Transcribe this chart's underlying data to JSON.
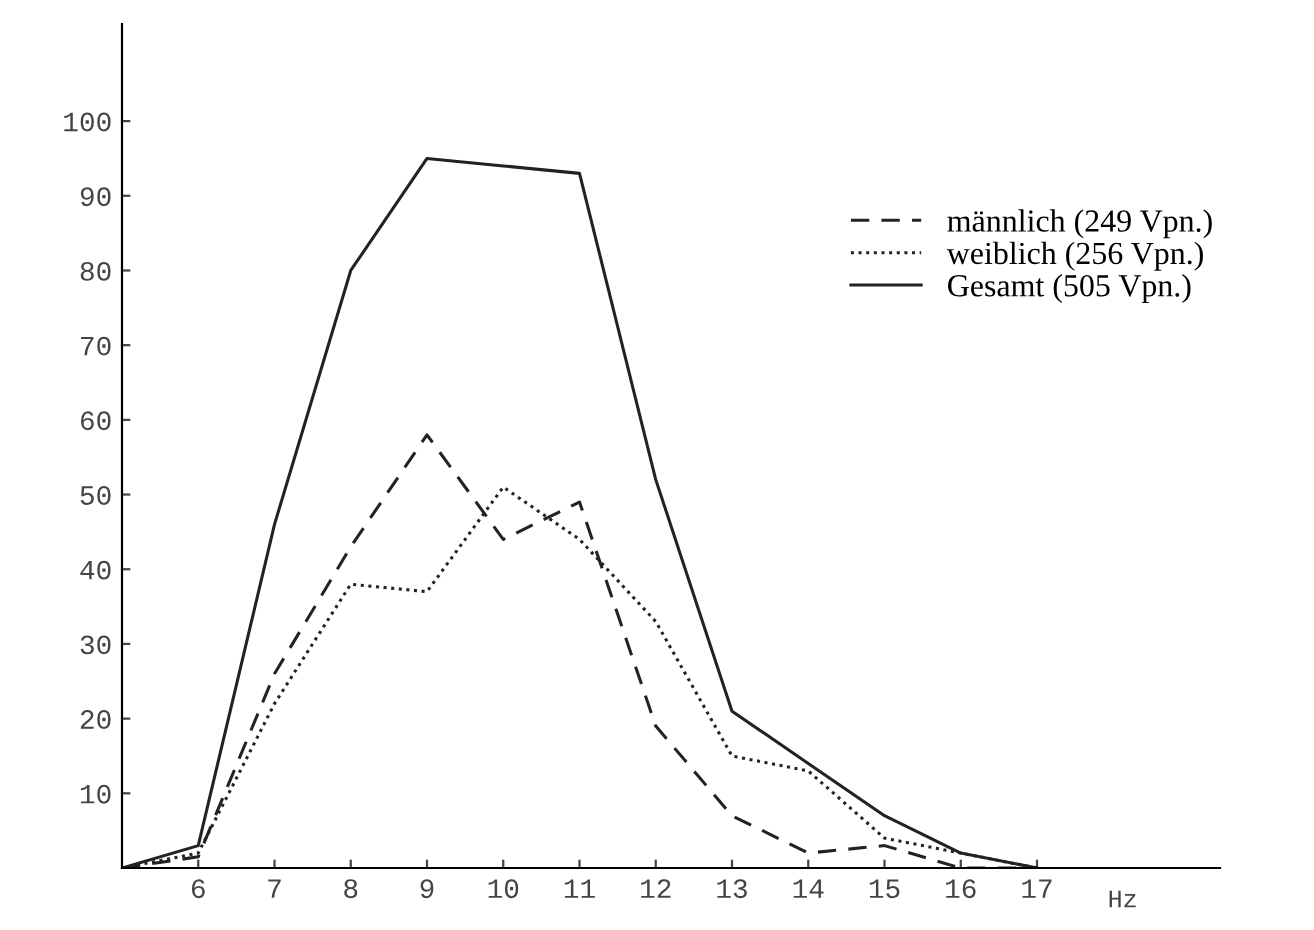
{
  "chart_data": {
    "type": "line",
    "xlabel": "Hz",
    "x": [
      5,
      6,
      7,
      8,
      9,
      10,
      11,
      12,
      13,
      14,
      15,
      16,
      17
    ],
    "series": [
      {
        "name": "männlich (249 Vpn.)",
        "color": "#222222",
        "line_style": "dashed",
        "values": [
          0,
          1.5,
          26,
          43,
          58,
          44,
          49,
          19,
          7,
          2,
          3,
          0,
          0
        ]
      },
      {
        "name": "weiblich (256 Vpn.)",
        "color": "#222222",
        "line_style": "dotted",
        "values": [
          0,
          2,
          22,
          38,
          37,
          51,
          44,
          33,
          15,
          13,
          4,
          2,
          0
        ]
      },
      {
        "name": "Gesamt (505 Vpn.)",
        "color": "#222222",
        "line_style": "solid",
        "values": [
          0,
          3,
          46,
          80,
          95,
          94,
          93,
          52,
          21,
          14,
          7,
          2,
          0
        ]
      }
    ],
    "xlim": [
      5,
      19.4
    ],
    "ylim": [
      0,
      113
    ],
    "xticks": [
      6,
      7,
      8,
      9,
      10,
      11,
      12,
      13,
      14,
      15,
      16,
      17
    ],
    "yticks": [
      10,
      20,
      30,
      40,
      50,
      60,
      70,
      80,
      90,
      100
    ],
    "legend": "right",
    "grid": false,
    "marker": "none"
  }
}
